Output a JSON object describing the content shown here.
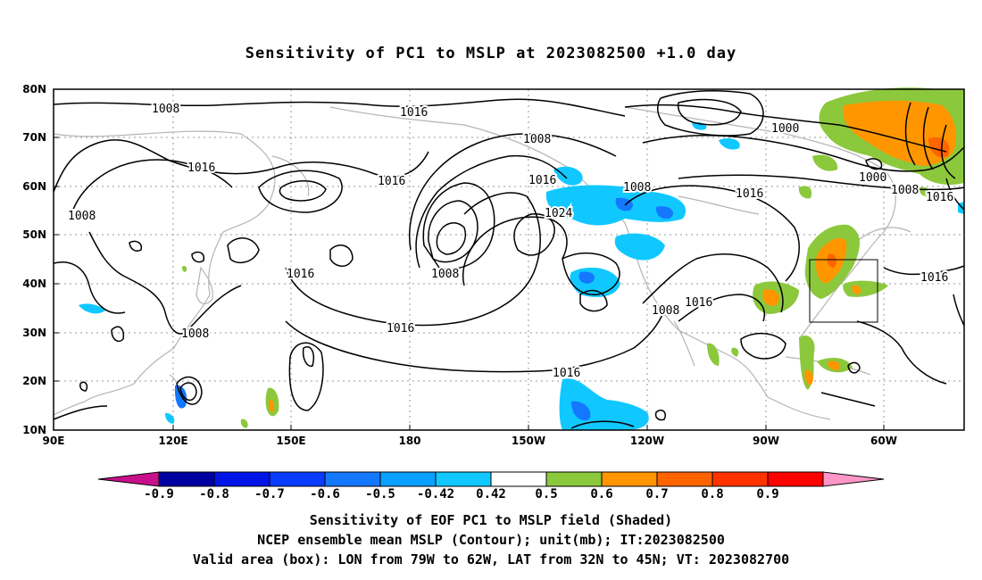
{
  "title": "Sensitivity of PC1 to MSLP at 2023082500 +1.0 day",
  "map": {
    "lon_labels": [
      "90E",
      "120E",
      "150E",
      "180",
      "150W",
      "120W",
      "90W",
      "60W"
    ],
    "lat_labels": [
      "80N",
      "70N",
      "60N",
      "50N",
      "40N",
      "30N",
      "20N",
      "10N"
    ],
    "contour_labels": [
      "1008",
      "1016",
      "1008",
      "1016",
      "1016",
      "1008",
      "1016",
      "1024",
      "1008",
      "1000",
      "1000",
      "1008",
      "1016",
      "1016",
      "1016",
      "1008",
      "1016",
      "1008",
      "1016",
      "1016",
      "1008",
      "1016"
    ],
    "valid_box": {
      "lon_from": "79W",
      "lon_to": "62W",
      "lat_from": "32N",
      "lat_to": "45N"
    }
  },
  "colorbar": {
    "labels": [
      "-0.9",
      "-0.8",
      "-0.7",
      "-0.6",
      "-0.5",
      "-0.42",
      "0.42",
      "0.5",
      "0.6",
      "0.7",
      "0.8",
      "0.9"
    ],
    "colors": [
      "#c8108c",
      "#0000a0",
      "#0014e6",
      "#0a3cff",
      "#1478ff",
      "#0aa0ff",
      "#10c8ff",
      "#ffffff",
      "#8cc83c",
      "#ff9600",
      "#ff6400",
      "#ff3200",
      "#ff0000",
      "#ff96c8"
    ]
  },
  "captions": [
    "Sensitivity of EOF PC1 to MSLP field (Shaded)",
    "NCEP ensemble mean MSLP (Contour); unit(mb); IT:2023082500",
    "Valid area (box): LON from 79W to 62W, LAT from 32N to 45N; VT: 2023082700"
  ]
}
